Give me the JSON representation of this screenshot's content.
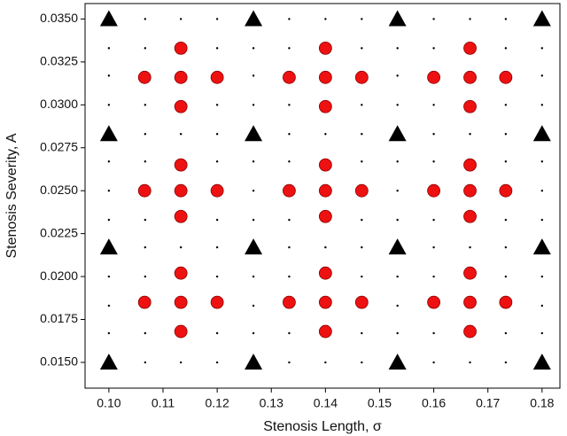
{
  "chart_data": {
    "type": "scatter",
    "xlabel": "Stenosis Length, σ",
    "ylabel": "Stenosis Severity, A",
    "xlim": [
      0.0956,
      0.1833
    ],
    "ylim": [
      0.0135,
      0.0359
    ],
    "xticks": [
      {
        "value": 0.1,
        "label": "0.10"
      },
      0.11,
      0.12,
      0.13,
      0.14,
      0.15,
      0.16,
      0.17,
      0.18
    ],
    "yticks": [
      {
        "value": 0.015,
        "label": "0.0150"
      },
      0.0175,
      {
        "value": 0.02,
        "label": "0.0200"
      },
      0.0225,
      {
        "value": 0.025,
        "label": "0.0250"
      },
      0.0275,
      {
        "value": 0.03,
        "label": "0.0300"
      },
      0.0325,
      {
        "value": 0.035,
        "label": "0.0350"
      }
    ],
    "series": [
      {
        "marker": "dot",
        "color": "#000000",
        "x": [
          0.1,
          0.1067,
          0.1133,
          0.12,
          0.1267,
          0.1333,
          0.14,
          0.1467,
          0.1533,
          0.16,
          0.1667,
          0.1733,
          0.18,
          0.1,
          0.1067,
          0.1133,
          0.12,
          0.1267,
          0.1333,
          0.14,
          0.1467,
          0.1533,
          0.16,
          0.1667,
          0.1733,
          0.18,
          0.1,
          0.1067,
          0.1133,
          0.12,
          0.1267,
          0.1333,
          0.14,
          0.1467,
          0.1533,
          0.16,
          0.1667,
          0.1733,
          0.18,
          0.1,
          0.1067,
          0.1133,
          0.12,
          0.1267,
          0.1333,
          0.14,
          0.1467,
          0.1533,
          0.16,
          0.1667,
          0.1733,
          0.18,
          0.1,
          0.1067,
          0.1133,
          0.12,
          0.1267,
          0.1333,
          0.14,
          0.1467,
          0.1533,
          0.16,
          0.1667,
          0.1733,
          0.18,
          0.1,
          0.1067,
          0.1133,
          0.12,
          0.1267,
          0.1333,
          0.14,
          0.1467,
          0.1533,
          0.16,
          0.1667,
          0.1733,
          0.18,
          0.1,
          0.1067,
          0.1133,
          0.12,
          0.1267,
          0.1333,
          0.14,
          0.1467,
          0.1533,
          0.16,
          0.1667,
          0.1733,
          0.18,
          0.1,
          0.1067,
          0.1133,
          0.12,
          0.1267,
          0.1333,
          0.14,
          0.1467,
          0.1533,
          0.16,
          0.1667,
          0.1733,
          0.18,
          0.1,
          0.1067,
          0.1133,
          0.12,
          0.1267,
          0.1333,
          0.14,
          0.1467,
          0.1533,
          0.16,
          0.1667,
          0.1733,
          0.18,
          0.1,
          0.1067,
          0.1133,
          0.12,
          0.1267,
          0.1333,
          0.14,
          0.1467,
          0.1533,
          0.16,
          0.1667,
          0.1733,
          0.18,
          0.1,
          0.1067,
          0.1133,
          0.12,
          0.1267,
          0.1333,
          0.14,
          0.1467,
          0.1533,
          0.16,
          0.1667,
          0.1733,
          0.18,
          0.1,
          0.1067,
          0.1133,
          0.12,
          0.1267,
          0.1333,
          0.14,
          0.1467,
          0.1533,
          0.16,
          0.1667,
          0.1733,
          0.18,
          0.1,
          0.1067,
          0.1133,
          0.12,
          0.1267,
          0.1333,
          0.14,
          0.1467,
          0.1533,
          0.16,
          0.1667,
          0.1733,
          0.18
        ],
        "y": [
          0.015,
          0.015,
          0.015,
          0.015,
          0.015,
          0.015,
          0.015,
          0.015,
          0.015,
          0.015,
          0.015,
          0.015,
          0.015,
          0.0167,
          0.0167,
          0.0167,
          0.0167,
          0.0167,
          0.0167,
          0.0167,
          0.0167,
          0.0167,
          0.0167,
          0.0167,
          0.0167,
          0.0167,
          0.0183,
          0.0183,
          0.0183,
          0.0183,
          0.0183,
          0.0183,
          0.0183,
          0.0183,
          0.0183,
          0.0183,
          0.0183,
          0.0183,
          0.0183,
          0.02,
          0.02,
          0.02,
          0.02,
          0.02,
          0.02,
          0.02,
          0.02,
          0.02,
          0.02,
          0.02,
          0.02,
          0.02,
          0.0217,
          0.0217,
          0.0217,
          0.0217,
          0.0217,
          0.0217,
          0.0217,
          0.0217,
          0.0217,
          0.0217,
          0.0217,
          0.0217,
          0.0217,
          0.0233,
          0.0233,
          0.0233,
          0.0233,
          0.0233,
          0.0233,
          0.0233,
          0.0233,
          0.0233,
          0.0233,
          0.0233,
          0.0233,
          0.0233,
          0.025,
          0.025,
          0.025,
          0.025,
          0.025,
          0.025,
          0.025,
          0.025,
          0.025,
          0.025,
          0.025,
          0.025,
          0.025,
          0.0267,
          0.0267,
          0.0267,
          0.0267,
          0.0267,
          0.0267,
          0.0267,
          0.0267,
          0.0267,
          0.0267,
          0.0267,
          0.0267,
          0.0267,
          0.0283,
          0.0283,
          0.0283,
          0.0283,
          0.0283,
          0.0283,
          0.0283,
          0.0283,
          0.0283,
          0.0283,
          0.0283,
          0.0283,
          0.0283,
          0.03,
          0.03,
          0.03,
          0.03,
          0.03,
          0.03,
          0.03,
          0.03,
          0.03,
          0.03,
          0.03,
          0.03,
          0.03,
          0.0317,
          0.0317,
          0.0317,
          0.0317,
          0.0317,
          0.0317,
          0.0317,
          0.0317,
          0.0317,
          0.0317,
          0.0317,
          0.0317,
          0.0317,
          0.0333,
          0.0333,
          0.0333,
          0.0333,
          0.0333,
          0.0333,
          0.0333,
          0.0333,
          0.0333,
          0.0333,
          0.0333,
          0.0333,
          0.0333,
          0.035,
          0.035,
          0.035,
          0.035,
          0.035,
          0.035,
          0.035,
          0.035,
          0.035,
          0.035,
          0.035,
          0.035,
          0.035
        ]
      },
      {
        "marker": "circle",
        "color": "#ee1111",
        "x": [
          0.1066,
          0.1133,
          0.12,
          0.1133,
          0.1133,
          0.1333,
          0.14,
          0.1467,
          0.14,
          0.14,
          0.16,
          0.1667,
          0.1733,
          0.1667,
          0.1667,
          0.1066,
          0.1133,
          0.12,
          0.1133,
          0.1133,
          0.1333,
          0.14,
          0.1467,
          0.14,
          0.14,
          0.16,
          0.1667,
          0.1733,
          0.1667,
          0.1667,
          0.1066,
          0.1133,
          0.12,
          0.1133,
          0.1133,
          0.1333,
          0.14,
          0.1467,
          0.14,
          0.14,
          0.16,
          0.1667,
          0.1733,
          0.1667,
          0.1667
        ],
        "y": [
          0.0316,
          0.0316,
          0.0316,
          0.0333,
          0.0299,
          0.0316,
          0.0316,
          0.0316,
          0.0333,
          0.0299,
          0.0316,
          0.0316,
          0.0316,
          0.0333,
          0.0299,
          0.025,
          0.025,
          0.025,
          0.0265,
          0.0235,
          0.025,
          0.025,
          0.025,
          0.0265,
          0.0235,
          0.025,
          0.025,
          0.025,
          0.0265,
          0.0235,
          0.0185,
          0.0185,
          0.0185,
          0.0202,
          0.0168,
          0.0185,
          0.0185,
          0.0185,
          0.0202,
          0.0168,
          0.0185,
          0.0185,
          0.0185,
          0.0202,
          0.0168
        ]
      },
      {
        "marker": "triangle",
        "color": "#000000",
        "x": [
          0.1,
          0.1267,
          0.1533,
          0.18,
          0.1,
          0.1267,
          0.1533,
          0.18,
          0.1,
          0.1267,
          0.1533,
          0.18,
          0.1,
          0.1267,
          0.1533,
          0.18
        ],
        "y": [
          0.015,
          0.015,
          0.015,
          0.015,
          0.0217,
          0.0217,
          0.0217,
          0.0217,
          0.0283,
          0.0283,
          0.0283,
          0.0283,
          0.035,
          0.035,
          0.035,
          0.035
        ]
      }
    ]
  }
}
